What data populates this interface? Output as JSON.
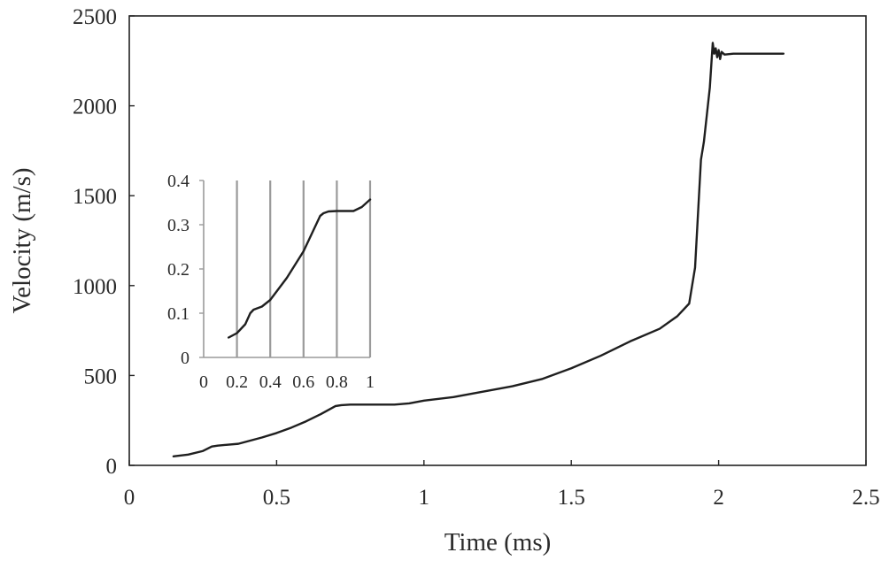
{
  "chart_data": [
    {
      "type": "line",
      "xlabel": "Time (ms)",
      "ylabel": "Velocity (m/s)",
      "xlim": [
        0,
        2.5
      ],
      "ylim": [
        0,
        2500
      ],
      "xticks": [
        0,
        0.5,
        1,
        1.5,
        2,
        2.5
      ],
      "xtick_labels": [
        "0",
        "0.5",
        "1",
        "1.5",
        "2",
        "2.5"
      ],
      "yticks": [
        0,
        500,
        1000,
        1500,
        2000,
        2500
      ],
      "ytick_labels": [
        "0",
        "500",
        "1000",
        "1500",
        "2000",
        "2500"
      ],
      "grid": false,
      "series": [
        {
          "color": "#1f1f1f",
          "x": [
            0.15,
            0.2,
            0.25,
            0.28,
            0.3,
            0.37,
            0.45,
            0.5,
            0.55,
            0.6,
            0.65,
            0.7,
            0.72,
            0.75,
            0.8,
            0.85,
            0.9,
            0.95,
            1.0,
            1.1,
            1.2,
            1.3,
            1.4,
            1.5,
            1.6,
            1.7,
            1.8,
            1.86,
            1.9,
            1.92,
            1.93,
            1.94,
            1.95,
            1.97,
            1.98,
            1.985,
            1.99,
            1.995,
            2.0,
            2.005,
            2.01,
            2.02,
            2.05,
            2.1,
            2.22
          ],
          "y": [
            50,
            60,
            80,
            105,
            110,
            120,
            155,
            180,
            210,
            245,
            285,
            330,
            335,
            338,
            338,
            338,
            338,
            345,
            360,
            380,
            410,
            440,
            480,
            540,
            610,
            690,
            760,
            830,
            900,
            1100,
            1400,
            1700,
            1800,
            2100,
            2350,
            2290,
            2320,
            2270,
            2310,
            2260,
            2300,
            2285,
            2290,
            2290,
            2290
          ]
        }
      ]
    },
    {
      "type": "line",
      "inset": true,
      "xlim": [
        0,
        1
      ],
      "ylim": [
        0,
        0.4
      ],
      "xticks": [
        0,
        0.2,
        0.4,
        0.6,
        0.8,
        1
      ],
      "xtick_labels": [
        "0",
        "0.2",
        "0.4",
        "0.6",
        "0.8",
        "1"
      ],
      "yticks": [
        0,
        0.1,
        0.2,
        0.3,
        0.4
      ],
      "ytick_labels": [
        "0",
        "0.1",
        "0.2",
        "0.3",
        "0.4"
      ],
      "grid": true,
      "series": [
        {
          "color": "#1f1f1f",
          "x": [
            0.15,
            0.2,
            0.25,
            0.28,
            0.3,
            0.35,
            0.4,
            0.45,
            0.5,
            0.55,
            0.6,
            0.65,
            0.7,
            0.72,
            0.75,
            0.8,
            0.85,
            0.9,
            0.95,
            1.0
          ],
          "y": [
            0.045,
            0.055,
            0.075,
            0.1,
            0.108,
            0.115,
            0.13,
            0.155,
            0.18,
            0.21,
            0.24,
            0.28,
            0.32,
            0.326,
            0.33,
            0.331,
            0.331,
            0.331,
            0.34,
            0.357
          ]
        }
      ]
    }
  ]
}
